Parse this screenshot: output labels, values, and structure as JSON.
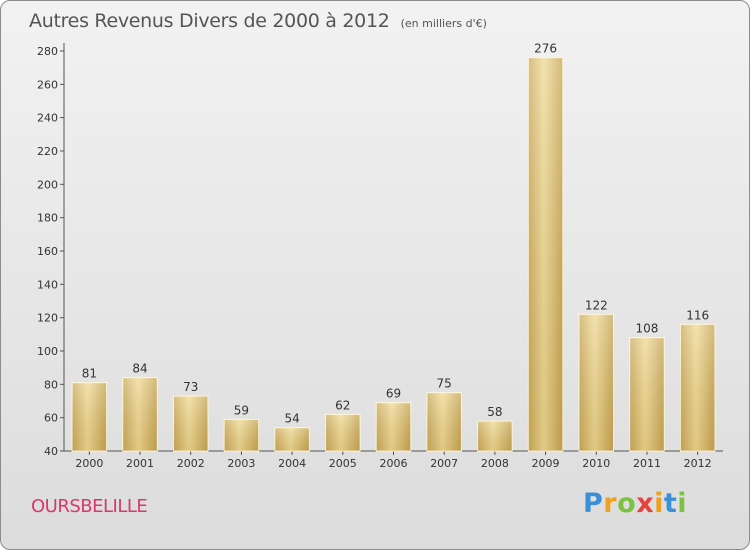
{
  "header": {
    "title": "Autres Revenus Divers de 2000 à 2012",
    "subtitle": "(en milliers d'€)"
  },
  "commune": "OURSBELILLE",
  "logo": {
    "letters": [
      "P",
      "r",
      "o",
      "x",
      "i",
      "t",
      "i"
    ],
    "colors": [
      "#3b8fd6",
      "#f0a020",
      "#7cc142",
      "#e8413c",
      "#f0a020",
      "#3b8fd6",
      "#7cc142"
    ]
  },
  "chart_data": {
    "type": "bar",
    "categories": [
      "2000",
      "2001",
      "2002",
      "2003",
      "2004",
      "2005",
      "2006",
      "2007",
      "2008",
      "2009",
      "2010",
      "2011",
      "2012"
    ],
    "values": [
      81,
      84,
      73,
      59,
      54,
      62,
      69,
      75,
      58,
      276,
      122,
      108,
      116
    ],
    "title": "Autres Revenus Divers de 2000 à 2012",
    "subtitle": "(en milliers d'€)",
    "ylim": [
      40,
      280
    ],
    "yticks": [
      40,
      60,
      80,
      100,
      120,
      140,
      160,
      180,
      200,
      220,
      240,
      260,
      280
    ],
    "grid": false,
    "bar_color": "#e6c97c"
  }
}
